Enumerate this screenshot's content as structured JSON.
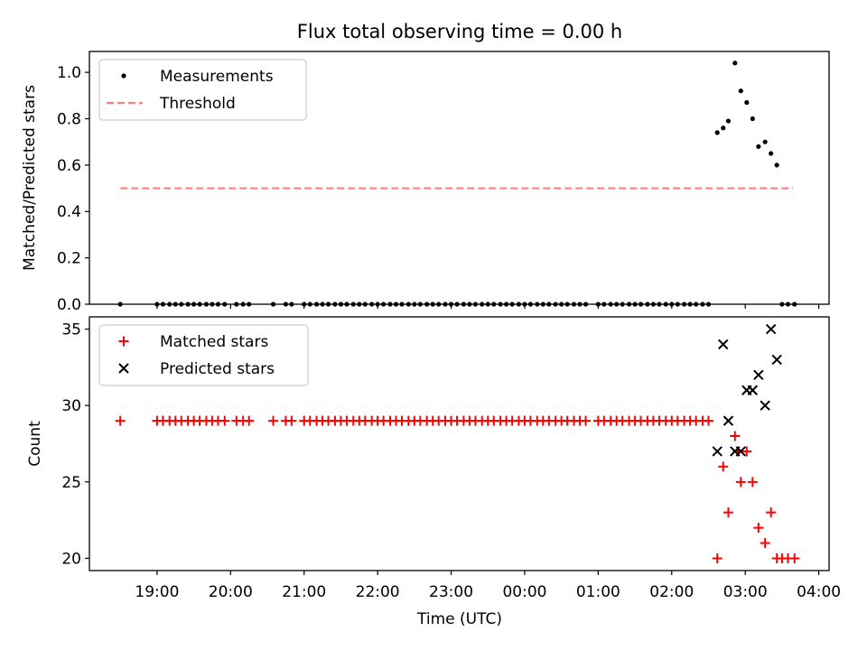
{
  "figure": {
    "title": "Flux total observing time = 0.00 h",
    "xlabel": "Time (UTC)",
    "xticks": [
      {
        "label": "19:00",
        "t": 19.0
      },
      {
        "label": "20:00",
        "t": 20.0
      },
      {
        "label": "21:00",
        "t": 21.0
      },
      {
        "label": "22:00",
        "t": 22.0
      },
      {
        "label": "23:00",
        "t": 23.0
      },
      {
        "label": "00:00",
        "t": 24.0
      },
      {
        "label": "01:00",
        "t": 25.0
      },
      {
        "label": "02:00",
        "t": 26.0
      },
      {
        "label": "03:00",
        "t": 27.0
      },
      {
        "label": "04:00",
        "t": 28.0
      }
    ],
    "xlim": [
      18.08,
      28.14
    ]
  },
  "chart_data": [
    {
      "type": "scatter",
      "ylabel": "Matched/Predicted stars",
      "ylim": [
        0,
        1.09
      ],
      "yticks": [
        {
          "label": "0.0",
          "v": 0.0
        },
        {
          "label": "0.2",
          "v": 0.2
        },
        {
          "label": "0.4",
          "v": 0.4
        },
        {
          "label": "0.6",
          "v": 0.6
        },
        {
          "label": "0.8",
          "v": 0.8
        },
        {
          "label": "1.0",
          "v": 1.0
        }
      ],
      "legend": {
        "placement": "upper-left",
        "entries": [
          "Measurements",
          "Threshold"
        ]
      },
      "series": [
        {
          "name": "Measurements",
          "color": "#000000",
          "marker": "dot",
          "zero_x": [
            18.5,
            19.0,
            19.08,
            19.17,
            19.25,
            19.33,
            19.42,
            19.5,
            19.58,
            19.67,
            19.75,
            19.83,
            19.92,
            20.08,
            20.17,
            20.25,
            20.58,
            20.75,
            20.83,
            21.0,
            21.08,
            21.17,
            21.25,
            21.33,
            21.42,
            21.5,
            21.58,
            21.67,
            21.75,
            21.83,
            21.92,
            22.0,
            22.08,
            22.17,
            22.25,
            22.33,
            22.42,
            22.5,
            22.58,
            22.67,
            22.75,
            22.83,
            22.92,
            23.0,
            23.08,
            23.17,
            23.25,
            23.33,
            23.42,
            23.5,
            23.58,
            23.67,
            23.75,
            23.83,
            23.92,
            24.0,
            24.08,
            24.17,
            24.25,
            24.33,
            24.42,
            24.5,
            24.58,
            24.67,
            24.75,
            24.83,
            25.0,
            25.08,
            25.17,
            25.25,
            25.33,
            25.42,
            25.5,
            25.58,
            25.67,
            25.75,
            25.83,
            25.92,
            26.0,
            26.08,
            26.17,
            26.25,
            26.33,
            26.42,
            26.5,
            27.5,
            27.58,
            27.67
          ],
          "points": [
            [
              26.62,
              0.74
            ],
            [
              26.7,
              0.76
            ],
            [
              26.77,
              0.79
            ],
            [
              26.86,
              1.04
            ],
            [
              26.94,
              0.92
            ],
            [
              27.02,
              0.87
            ],
            [
              27.1,
              0.8
            ],
            [
              27.18,
              0.68
            ],
            [
              27.27,
              0.7
            ],
            [
              27.35,
              0.65
            ],
            [
              27.43,
              0.6
            ]
          ]
        },
        {
          "name": "Threshold",
          "color": "#ff7f7f",
          "style": "dashed",
          "x": [
            18.5,
            27.65
          ],
          "y": [
            0.5,
            0.5
          ]
        }
      ]
    },
    {
      "type": "scatter",
      "ylabel": "Count",
      "ylim": [
        19.2,
        35.8
      ],
      "yticks": [
        {
          "label": "20",
          "v": 20
        },
        {
          "label": "25",
          "v": 25
        },
        {
          "label": "30",
          "v": 30
        },
        {
          "label": "35",
          "v": 35
        }
      ],
      "legend": {
        "placement": "upper-left",
        "entries": [
          "Matched stars",
          "Predicted stars"
        ]
      },
      "series": [
        {
          "name": "Matched stars",
          "color": "#ff0000",
          "marker": "plus",
          "const_y": 29,
          "const_x": [
            18.5,
            19.0,
            19.08,
            19.17,
            19.25,
            19.33,
            19.42,
            19.5,
            19.58,
            19.67,
            19.75,
            19.83,
            19.92,
            20.08,
            20.17,
            20.25,
            20.58,
            20.75,
            20.83,
            21.0,
            21.08,
            21.17,
            21.25,
            21.33,
            21.42,
            21.5,
            21.58,
            21.67,
            21.75,
            21.83,
            21.92,
            22.0,
            22.08,
            22.17,
            22.25,
            22.33,
            22.42,
            22.5,
            22.58,
            22.67,
            22.75,
            22.83,
            22.92,
            23.0,
            23.08,
            23.17,
            23.25,
            23.33,
            23.42,
            23.5,
            23.58,
            23.67,
            23.75,
            23.83,
            23.92,
            24.0,
            24.08,
            24.17,
            24.25,
            24.33,
            24.42,
            24.5,
            24.58,
            24.67,
            24.75,
            24.83,
            25.0,
            25.08,
            25.17,
            25.25,
            25.33,
            25.42,
            25.5,
            25.58,
            25.67,
            25.75,
            25.83,
            25.92,
            26.0,
            26.08,
            26.17,
            26.25,
            26.33,
            26.42,
            26.5
          ],
          "points": [
            [
              26.62,
              20
            ],
            [
              26.7,
              26
            ],
            [
              26.77,
              23
            ],
            [
              26.86,
              28
            ],
            [
              26.9,
              27
            ],
            [
              26.94,
              25
            ],
            [
              27.02,
              27
            ],
            [
              27.1,
              25
            ],
            [
              27.18,
              22
            ],
            [
              27.27,
              21
            ],
            [
              27.35,
              23
            ],
            [
              27.43,
              20
            ],
            [
              27.5,
              20
            ],
            [
              27.58,
              20
            ],
            [
              27.67,
              20
            ]
          ]
        },
        {
          "name": "Predicted stars",
          "color": "#000000",
          "marker": "x",
          "points": [
            [
              26.62,
              27
            ],
            [
              26.7,
              34
            ],
            [
              26.77,
              29
            ],
            [
              26.86,
              27
            ],
            [
              26.94,
              27
            ],
            [
              27.02,
              31
            ],
            [
              27.1,
              31
            ],
            [
              27.18,
              32
            ],
            [
              27.27,
              30
            ],
            [
              27.35,
              35
            ],
            [
              27.43,
              33
            ]
          ]
        }
      ]
    }
  ]
}
